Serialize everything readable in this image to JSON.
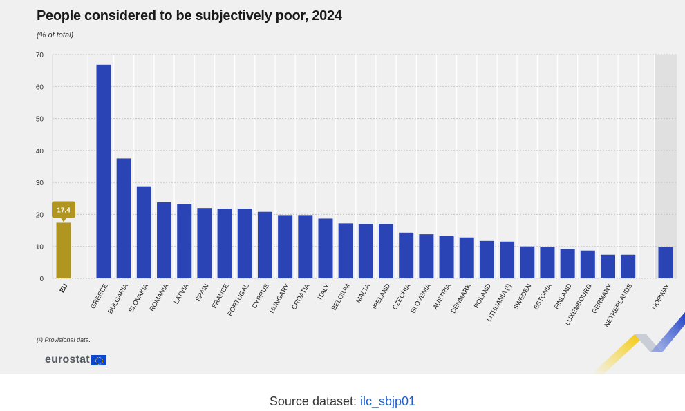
{
  "title": "People considered to be subjectively poor, 2024",
  "subtitle": "(% of total)",
  "footnote": "(¹) Provisional data.",
  "logo_text": "eurostat",
  "source": {
    "label": "Source dataset:",
    "link_text": "ilc_sbjp01"
  },
  "colors": {
    "eu": "#b09520",
    "countries": "#2a43b5",
    "efta_band": "#e0e0e0"
  },
  "chart_data": {
    "type": "bar",
    "title": "People considered to be subjectively poor, 2024",
    "ylabel": "(% of total)",
    "xlabel": "",
    "ylim": [
      0,
      70
    ],
    "yticks": [
      0,
      10,
      20,
      30,
      40,
      50,
      60,
      70
    ],
    "grid": true,
    "eu": {
      "label": "EU",
      "value": 17.4,
      "data_label": "17.4"
    },
    "categories": [
      "Greece",
      "Bulgaria",
      "Slovakia",
      "Romania",
      "Latvia",
      "Spain",
      "France",
      "Portugal",
      "Cyprus",
      "Hungary",
      "Croatia",
      "Italy",
      "Belgium",
      "Malta",
      "Ireland",
      "Czechia",
      "Slovenia",
      "Austria",
      "Denmark",
      "Poland",
      "Lithuania (¹)",
      "Sweden",
      "Estonia",
      "Finland",
      "Luxembourg",
      "Germany",
      "Netherlands"
    ],
    "values": [
      66.8,
      37.5,
      28.8,
      23.8,
      23.3,
      22.0,
      21.8,
      21.8,
      20.8,
      19.8,
      19.8,
      18.7,
      17.2,
      17.0,
      17.0,
      14.3,
      13.8,
      13.2,
      12.8,
      11.7,
      11.5,
      10.0,
      9.8,
      9.2,
      8.7,
      7.4,
      7.4
    ],
    "efta": {
      "categories": [
        "Norway"
      ],
      "values": [
        9.8
      ]
    }
  }
}
